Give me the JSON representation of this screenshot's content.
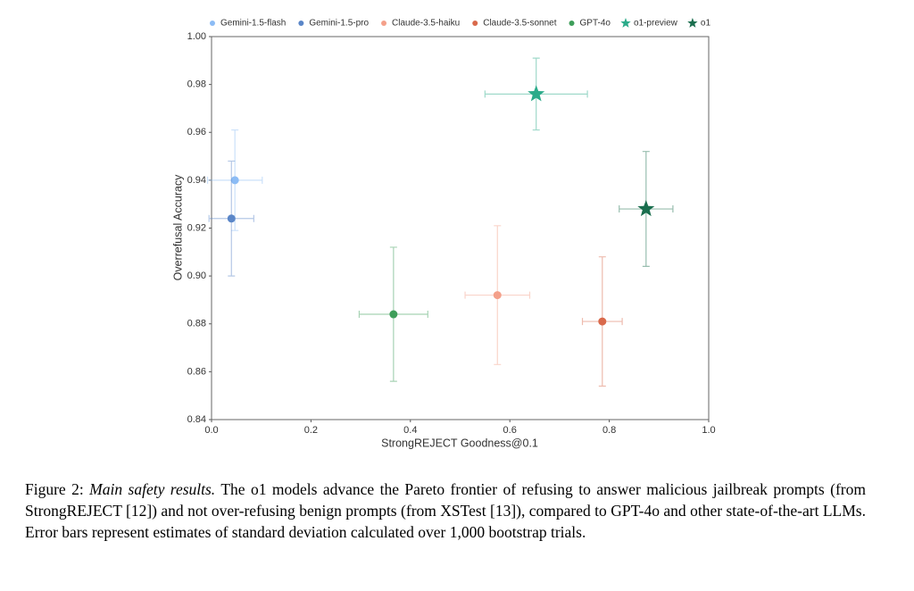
{
  "chart_data": {
    "type": "scatter",
    "xlabel": "StrongREJECT Goodness@0.1",
    "ylabel": "Overrefusal Accuracy",
    "xlim": [
      0,
      1.0
    ],
    "ylim": [
      0.84,
      1.0
    ],
    "xticks": [
      {
        "value": 0,
        "label": "0.0"
      },
      0.2,
      0.4,
      0.6,
      0.8,
      {
        "value": 1.0,
        "label": "1.0"
      }
    ],
    "yticks": [
      0.84,
      0.86,
      0.88,
      {
        "value": 0.9,
        "label": "0.90"
      },
      0.92,
      0.94,
      0.96,
      0.98,
      {
        "value": 1.0,
        "label": "1.00"
      }
    ],
    "legend": "top",
    "series": [
      {
        "name": "Gemini-1.5-flash",
        "color": "#8cbcf5",
        "marker": "circle",
        "x": [
          0.047
        ],
        "values": [
          0.94
        ],
        "xerr": [
          0.055
        ],
        "yerr": [
          0.021
        ]
      },
      {
        "name": "Gemini-1.5-pro",
        "color": "#5a86c8",
        "marker": "circle",
        "x": [
          0.04
        ],
        "values": [
          0.924
        ],
        "xerr": [
          0.045
        ],
        "yerr": [
          0.024
        ]
      },
      {
        "name": "Claude-3.5-haiku",
        "color": "#f4a08a",
        "marker": "circle",
        "x": [
          0.575
        ],
        "values": [
          0.892
        ],
        "xerr": [
          0.065
        ],
        "yerr": [
          0.029
        ]
      },
      {
        "name": "Claude-3.5-sonnet",
        "color": "#d9694b",
        "marker": "circle",
        "x": [
          0.786
        ],
        "values": [
          0.881
        ],
        "xerr": [
          0.04
        ],
        "yerr": [
          0.027
        ]
      },
      {
        "name": "GPT-4o",
        "color": "#3e9e5a",
        "marker": "circle",
        "x": [
          0.366
        ],
        "values": [
          0.884
        ],
        "xerr": [
          0.069
        ],
        "yerr": [
          0.028
        ]
      },
      {
        "name": "o1-preview",
        "color": "#2bab8a",
        "marker": "star",
        "x": [
          0.653
        ],
        "values": [
          0.976
        ],
        "xerr": [
          0.103
        ],
        "yerr": [
          0.015
        ]
      },
      {
        "name": "o1",
        "color": "#1a6e4e",
        "marker": "star",
        "x": [
          0.874
        ],
        "values": [
          0.928
        ],
        "xerr": [
          0.054
        ],
        "yerr": [
          0.024
        ]
      }
    ]
  },
  "caption": {
    "label": "Figure 2:",
    "emphasis": "Main safety results.",
    "text": "The o1 models advance the Pareto frontier of refusing to answer malicious jailbreak prompts (from StrongREJECT [12]) and not over-refusing benign prompts (from XSTest [13]), compared to GPT-4o and other state-of-the-art LLMs. Error bars represent estimates of standard deviation calculated over 1,000 bootstrap trials."
  }
}
